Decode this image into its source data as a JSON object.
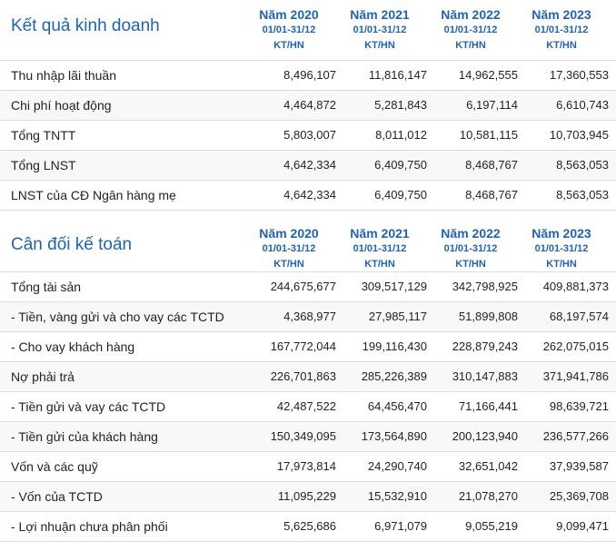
{
  "section1": {
    "title": "Kết quả kinh doanh",
    "columns": [
      {
        "year": "Năm 2020",
        "period": "01/01-31/12",
        "unit": "KT/HN"
      },
      {
        "year": "Năm 2021",
        "period": "01/01-31/12",
        "unit": "KT/HN"
      },
      {
        "year": "Năm 2022",
        "period": "01/01-31/12",
        "unit": "KT/HN"
      },
      {
        "year": "Năm 2023",
        "period": "01/01-31/12",
        "unit": "KT/HN"
      }
    ],
    "rows": [
      {
        "label": "Thu nhập lãi thuần",
        "values": [
          "8,496,107",
          "11,816,147",
          "14,962,555",
          "17,360,553"
        ]
      },
      {
        "label": "Chi phí hoạt động",
        "values": [
          "4,464,872",
          "5,281,843",
          "6,197,114",
          "6,610,743"
        ]
      },
      {
        "label": "Tổng TNTT",
        "values": [
          "5,803,007",
          "8,011,012",
          "10,581,115",
          "10,703,945"
        ]
      },
      {
        "label": "Tổng LNST",
        "values": [
          "4,642,334",
          "6,409,750",
          "8,468,767",
          "8,563,053"
        ]
      },
      {
        "label": "LNST của CĐ Ngân hàng mẹ",
        "values": [
          "4,642,334",
          "6,409,750",
          "8,468,767",
          "8,563,053"
        ]
      }
    ]
  },
  "section2": {
    "title": "Cân đối kế toán",
    "columns": [
      {
        "year": "Năm 2020",
        "period": "01/01-31/12",
        "unit": "KT/HN"
      },
      {
        "year": "Năm 2021",
        "period": "01/01-31/12",
        "unit": "KT/HN"
      },
      {
        "year": "Năm 2022",
        "period": "01/01-31/12",
        "unit": "KT/HN"
      },
      {
        "year": "Năm 2023",
        "period": "01/01-31/12",
        "unit": "KT/HN"
      }
    ],
    "rows": [
      {
        "label": "Tổng tài sản",
        "values": [
          "244,675,677",
          "309,517,129",
          "342,798,925",
          "409,881,373"
        ]
      },
      {
        "label": "- Tiền, vàng gửi và cho vay các TCTD",
        "values": [
          "4,368,977",
          "27,985,117",
          "51,899,808",
          "68,197,574"
        ]
      },
      {
        "label": "- Cho vay khách hàng",
        "values": [
          "167,772,044",
          "199,116,430",
          "228,879,243",
          "262,075,015"
        ]
      },
      {
        "label": "Nợ phải trả",
        "values": [
          "226,701,863",
          "285,226,389",
          "310,147,883",
          "371,941,786"
        ]
      },
      {
        "label": "- Tiền gửi và vay các TCTD",
        "values": [
          "42,487,522",
          "64,456,470",
          "71,166,441",
          "98,639,721"
        ]
      },
      {
        "label": "- Tiền gửi của khách hàng",
        "values": [
          "150,349,095",
          "173,564,890",
          "200,123,940",
          "236,577,266"
        ]
      },
      {
        "label": "Vốn và các quỹ",
        "values": [
          "17,973,814",
          "24,290,740",
          "32,651,042",
          "37,939,587"
        ]
      },
      {
        "label": "- Vốn của TCTD",
        "values": [
          "11,095,229",
          "15,532,910",
          "21,078,270",
          "25,369,708"
        ]
      },
      {
        "label": "- Lợi nhuận chưa phân phối",
        "values": [
          "5,625,686",
          "6,971,079",
          "9,055,219",
          "9,099,471"
        ]
      }
    ]
  },
  "colors": {
    "accent": "#1f63b6",
    "border": "#dcdcdc",
    "text": "#222222"
  }
}
